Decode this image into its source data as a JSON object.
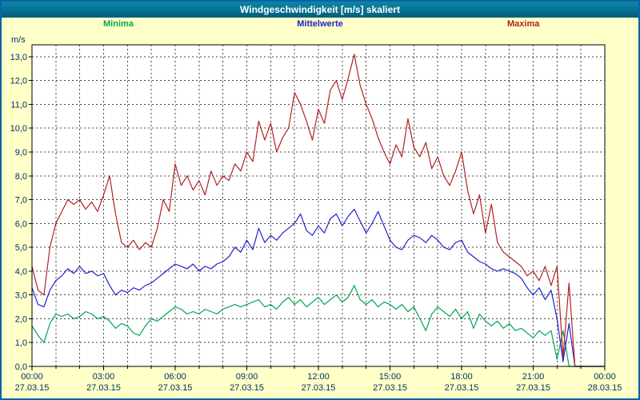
{
  "window": {
    "title": "Windgeschwindigkeit [m/s] skaliert"
  },
  "colors": {
    "page_bg": "#ffffc8",
    "titlebar_top": "#0d86a6",
    "titlebar_bottom": "#015e7d",
    "border": "#0b61a4",
    "plot_bg": "#ffffff",
    "grid": "#444444",
    "axis": "#000000",
    "axis_text": "#003366"
  },
  "chart_data": {
    "type": "line",
    "title": "Windgeschwindigkeit [m/s] skaliert",
    "ylabel": "m/s",
    "ylim": [
      0,
      13.5
    ],
    "y_tick_labels": [
      "0,0",
      "1,0",
      "2,0",
      "3,0",
      "4,0",
      "5,0",
      "6,0",
      "7,0",
      "8,0",
      "9,0",
      "10,0",
      "11,0",
      "12,0",
      "13,0"
    ],
    "x_total_minutes": 1440,
    "x_step_minutes": 15,
    "x_tick_minutes": [
      0,
      180,
      360,
      540,
      720,
      900,
      1080,
      1260,
      1440
    ],
    "x_tick_labels": [
      "00:00",
      "03:00",
      "06:00",
      "09:00",
      "12:00",
      "15:00",
      "18:00",
      "21:00",
      "00:00"
    ],
    "x_tick_dates": [
      "27.03.15",
      "27.03.15",
      "27.03.15",
      "27.03.15",
      "27.03.15",
      "27.03.15",
      "27.03.15",
      "27.03.15",
      "28.03.15"
    ],
    "grid": "dashed, hourly vertical and 1 m/s horizontal",
    "legend_position": "top",
    "series": [
      {
        "name": "Minima",
        "color": "#00a651",
        "values": [
          1.7,
          1.3,
          1.0,
          1.8,
          2.2,
          2.1,
          2.2,
          2.0,
          2.1,
          2.3,
          2.2,
          2.0,
          2.1,
          1.9,
          1.6,
          1.8,
          1.7,
          1.4,
          1.3,
          1.7,
          2.0,
          1.9,
          2.1,
          2.3,
          2.5,
          2.4,
          2.2,
          2.3,
          2.2,
          2.4,
          2.3,
          2.2,
          2.4,
          2.5,
          2.6,
          2.5,
          2.6,
          2.7,
          2.8,
          2.5,
          2.6,
          2.4,
          2.7,
          2.9,
          2.6,
          2.8,
          2.5,
          2.7,
          2.9,
          2.6,
          2.8,
          3.0,
          2.7,
          2.9,
          3.4,
          2.8,
          2.6,
          2.8,
          2.5,
          2.7,
          2.6,
          2.4,
          2.6,
          2.3,
          2.5,
          2.0,
          1.5,
          2.2,
          2.5,
          2.3,
          2.1,
          2.4,
          2.0,
          2.3,
          1.6,
          2.2,
          1.9,
          1.7,
          1.9,
          1.6,
          1.8,
          1.5,
          1.6,
          1.4,
          1.2,
          1.5,
          1.3,
          1.5,
          0.3,
          1.5,
          0.0,
          0.0,
          0.0,
          0.0,
          0.0,
          0.0,
          0.0
        ]
      },
      {
        "name": "Mittelwerte",
        "color": "#2222cc",
        "values": [
          3.3,
          2.6,
          2.5,
          3.2,
          3.6,
          3.8,
          4.1,
          3.9,
          4.2,
          3.9,
          4.0,
          3.8,
          3.9,
          3.4,
          3.0,
          3.2,
          3.1,
          3.3,
          3.2,
          3.4,
          3.5,
          3.7,
          3.9,
          4.1,
          4.3,
          4.2,
          4.1,
          4.3,
          4.0,
          4.2,
          4.1,
          4.3,
          4.4,
          4.6,
          5.0,
          4.8,
          5.3,
          4.9,
          5.8,
          5.2,
          5.5,
          5.3,
          5.6,
          5.8,
          6.0,
          6.4,
          5.7,
          5.5,
          5.9,
          5.6,
          6.2,
          6.4,
          5.9,
          6.3,
          6.6,
          6.1,
          5.6,
          6.0,
          6.5,
          5.9,
          5.3,
          5.0,
          4.9,
          5.3,
          5.5,
          5.4,
          5.2,
          5.5,
          5.3,
          5.0,
          4.9,
          5.2,
          5.3,
          4.8,
          4.6,
          4.4,
          4.3,
          4.1,
          4.0,
          4.1,
          4.0,
          3.9,
          3.7,
          3.3,
          3.0,
          3.3,
          2.8,
          3.2,
          2.0,
          0.2,
          1.8,
          0.0,
          0.0,
          0.0,
          0.0,
          0.0,
          0.0
        ]
      },
      {
        "name": "Maxima",
        "color": "#b22222",
        "values": [
          4.2,
          3.2,
          3.0,
          5.0,
          6.0,
          6.5,
          7.0,
          6.8,
          7.0,
          6.6,
          6.9,
          6.5,
          7.2,
          8.0,
          6.4,
          5.2,
          5.0,
          5.3,
          4.9,
          5.2,
          5.0,
          5.8,
          7.0,
          6.5,
          8.5,
          7.6,
          8.0,
          7.4,
          7.8,
          7.2,
          8.2,
          7.6,
          8.0,
          7.8,
          8.5,
          8.2,
          9.0,
          8.6,
          10.3,
          9.5,
          10.2,
          9.0,
          9.6,
          10.0,
          11.5,
          11.0,
          10.3,
          9.5,
          10.8,
          10.2,
          11.6,
          12.0,
          11.2,
          12.1,
          13.1,
          11.8,
          11.0,
          10.4,
          9.6,
          9.0,
          8.5,
          9.3,
          8.8,
          10.4,
          9.2,
          8.8,
          9.4,
          8.3,
          8.8,
          8.0,
          7.6,
          8.2,
          9.0,
          7.4,
          6.4,
          7.2,
          5.6,
          6.8,
          5.2,
          4.8,
          4.6,
          4.4,
          4.2,
          3.8,
          4.0,
          3.6,
          4.2,
          3.4,
          4.2,
          0.4,
          3.5,
          0.0,
          0.0,
          0.0,
          0.0,
          0.0,
          0.0
        ]
      }
    ]
  }
}
